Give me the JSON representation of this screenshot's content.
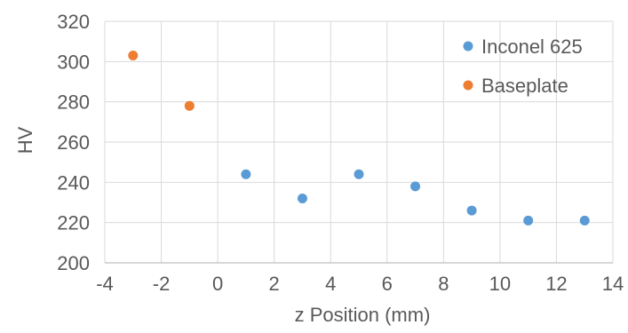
{
  "chart_data": {
    "type": "scatter",
    "title": "",
    "xlabel": "z Position (mm)",
    "ylabel": "HV",
    "xlim": [
      -4,
      14
    ],
    "ylim": [
      200,
      320
    ],
    "x_ticks": [
      -4,
      -2,
      0,
      2,
      4,
      6,
      8,
      10,
      12,
      14
    ],
    "y_ticks": [
      200,
      220,
      240,
      260,
      280,
      300,
      320
    ],
    "grid": true,
    "legend_position": "top-right",
    "series": [
      {
        "name": "Inconel 625",
        "color": "#5b9bd5",
        "points": [
          {
            "x": 1,
            "y": 244
          },
          {
            "x": 3,
            "y": 232
          },
          {
            "x": 5,
            "y": 244
          },
          {
            "x": 7,
            "y": 238
          },
          {
            "x": 9,
            "y": 226
          },
          {
            "x": 11,
            "y": 221
          },
          {
            "x": 13,
            "y": 221
          }
        ]
      },
      {
        "name": "Baseplate",
        "color": "#ed7d31",
        "points": [
          {
            "x": -3,
            "y": 303
          },
          {
            "x": -1,
            "y": 278
          }
        ]
      }
    ]
  }
}
